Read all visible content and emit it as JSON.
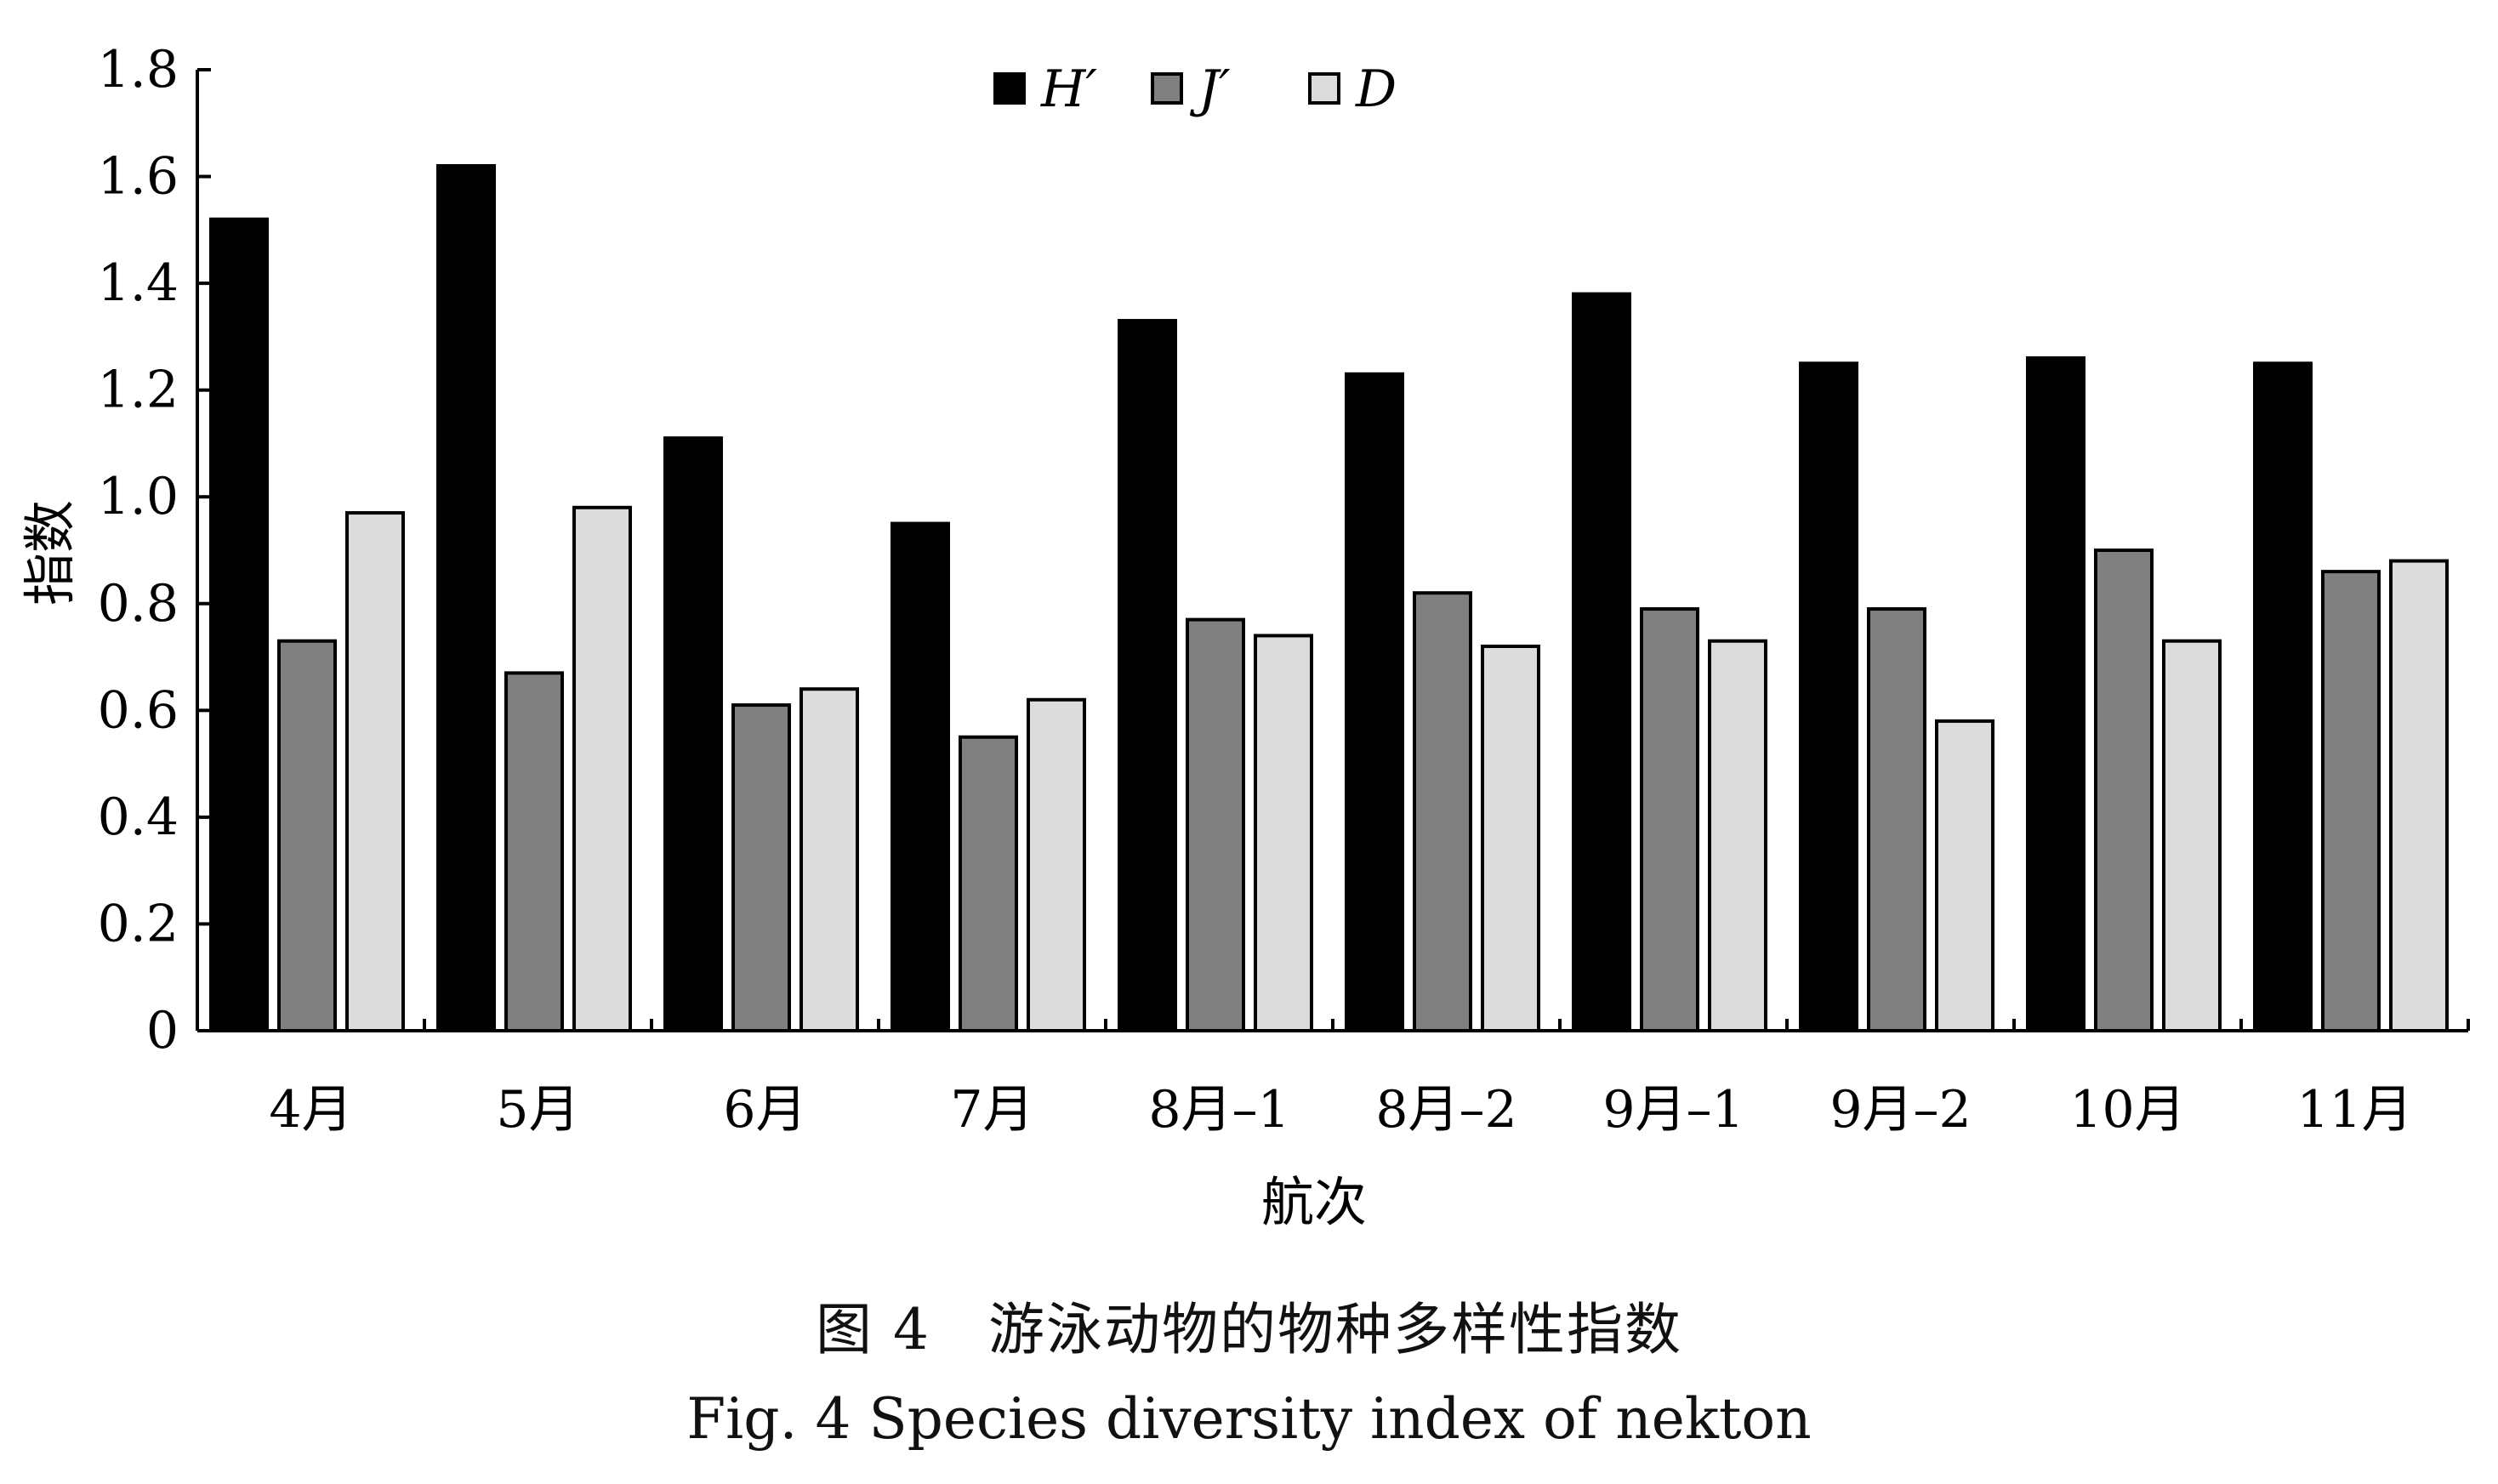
{
  "chart_data": {
    "type": "bar",
    "ylabel": "指数",
    "xlabel": "航次",
    "ylim": [
      0,
      1.8
    ],
    "yticks": [
      "0",
      "0.2",
      "0.4",
      "0.6",
      "0.8",
      "1.0",
      "1.2",
      "1.4",
      "1.6",
      "1.8"
    ],
    "categories": [
      "4月",
      "5月",
      "6月",
      "7月",
      "8月–1",
      "8月–2",
      "9月–1",
      "9月–2",
      "10月",
      "11月"
    ],
    "series": [
      {
        "name": "H′",
        "color": "#000000",
        "values": [
          1.52,
          1.62,
          1.11,
          0.95,
          1.33,
          1.23,
          1.38,
          1.25,
          1.26,
          1.25
        ]
      },
      {
        "name": "J′",
        "color": "#808080",
        "values": [
          0.73,
          0.67,
          0.61,
          0.55,
          0.77,
          0.82,
          0.79,
          0.79,
          0.9,
          0.86
        ]
      },
      {
        "name": "D",
        "color": "#dcdcdc",
        "values": [
          0.97,
          0.98,
          0.64,
          0.62,
          0.74,
          0.72,
          0.73,
          0.58,
          0.73,
          0.88
        ]
      }
    ],
    "legend": "top-center",
    "grid": false
  },
  "caption": {
    "cn": "图 4　游泳动物的物种多样性指数",
    "en": "Fig. 4   Species diversity index of nekton"
  }
}
